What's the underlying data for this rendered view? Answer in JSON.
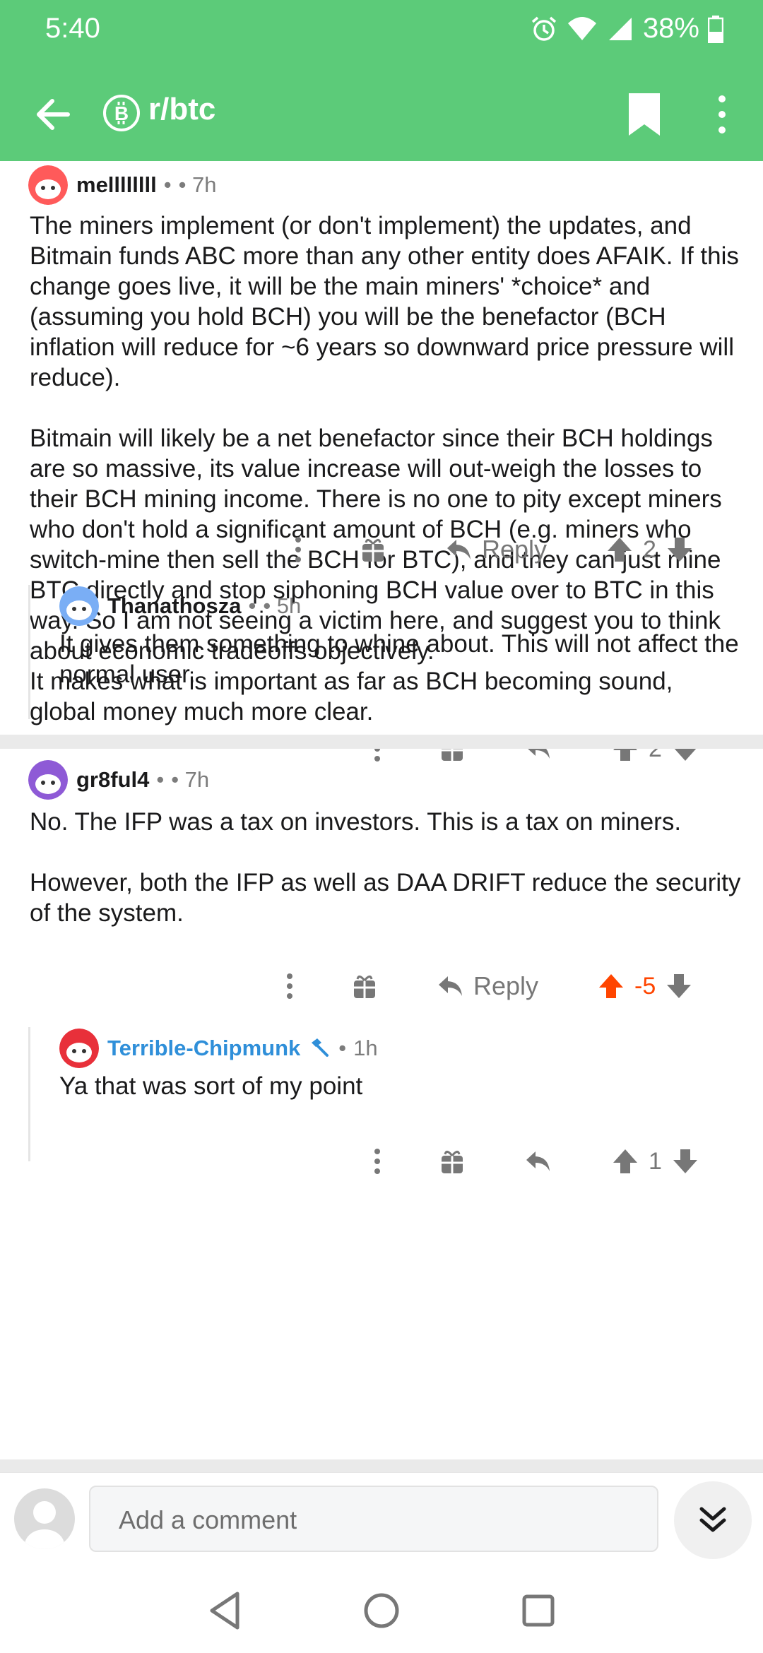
{
  "status_bar": {
    "time": "5:40",
    "battery": "38%"
  },
  "toolbar": {
    "subreddit": "r/btc"
  },
  "comments": [
    {
      "author": "mellllllll",
      "separator": "•",
      "time": "• 7h",
      "paragraphs": [
        "The miners implement (or don't implement) the updates, and Bitmain funds ABC more than any other entity does AFAIK. If this change goes live, it will be the main miners' *choice* and (assuming you hold BCH) you will be the benefactor (BCH inflation will reduce for ~6 years so downward price pressure will reduce).",
        "Bitmain will likely be a net benefactor since their BCH holdings are so massive, its value increase will out-weigh the losses to their BCH mining income. There is no one to pity except miners who don't hold a significant amount of BCH (e.g. miners who switch-mine then sell the BCH for BTC), and they can just mine BTC directly and stop siphoning BCH value over to BTC in this way. So I am not seeing a victim here, and suggest you to think about economic tradeoffs objectively.\nIt makes what is important as far as BCH becoming sound, global money much more clear."
      ],
      "reply_label": "Reply",
      "score": "2"
    },
    {
      "author": "Thanathosza",
      "separator": "•",
      "time": "• 5h",
      "paragraphs": [
        "It gives them something to whine about. This will not affect the normal user."
      ],
      "score": "2"
    },
    {
      "author": "gr8ful4",
      "separator": "•",
      "time": "• 7h",
      "paragraphs": [
        "No. The IFP was a tax on investors. This is a tax on miners.",
        "However, both the IFP as well as DAA DRIFT reduce the security of the system."
      ],
      "reply_label": "Reply",
      "score": "-5"
    },
    {
      "author": "Terrible-Chipmunk",
      "separator": "•",
      "time": "1h",
      "paragraphs": [
        "Ya that was sort of my point"
      ],
      "score": "1"
    }
  ],
  "composer": {
    "placeholder": "Add a comment"
  },
  "colors": {
    "header": "#5ccb79",
    "upvote_active": "#ff4500",
    "mod": "#2f8fd9"
  },
  "icons": [
    "back-arrow-icon",
    "bitcoin-icon",
    "bookmark-icon",
    "more-vertical-icon",
    "gift-icon",
    "reply-icon",
    "upvote-icon",
    "downvote-icon",
    "chevron-double-down-icon"
  ]
}
